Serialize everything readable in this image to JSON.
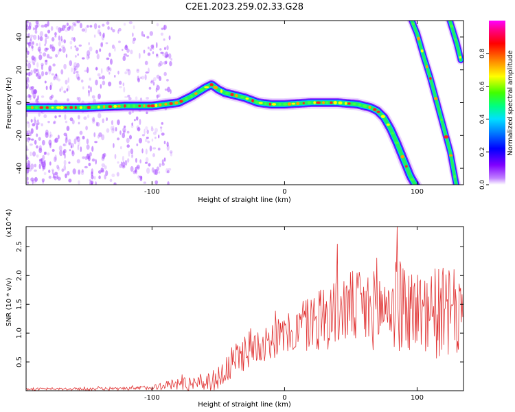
{
  "title": "C2E1.2023.259.02.33.G28",
  "chart_data": [
    {
      "type": "heatmap",
      "title": "C2E1.2023.259.02.33.G28",
      "xlabel": "Height of straight line (km)",
      "ylabel": "Frequency (Hz)",
      "xlim": [
        -195,
        135
      ],
      "ylim": [
        -50,
        50
      ],
      "xticks": [
        -100,
        0,
        100
      ],
      "xtick_labels": [
        "-100",
        "0",
        "100"
      ],
      "yticks": [
        -40,
        -20,
        0,
        20,
        40
      ],
      "ytick_labels": [
        "-40",
        "-20",
        "0",
        "20",
        "40"
      ],
      "colorbar": {
        "label": "Normalized spectral amplitude",
        "range": [
          0,
          1
        ],
        "ticks": [
          0.0,
          0.2,
          0.4,
          0.6,
          0.8
        ],
        "tick_labels": [
          "0.0",
          "0.2",
          "0.4",
          "0.6",
          "0.8"
        ],
        "colors": [
          "#ffffff",
          "#8000ff",
          "#0000ff",
          "#00c0ff",
          "#00ff80",
          "#40ff00",
          "#ffff00",
          "#ff8000",
          "#ff0000",
          "#ff00ff"
        ]
      },
      "series": [
        {
          "name": "main trace",
          "x": [
            -195,
            -150,
            -120,
            -100,
            -80,
            -70,
            -60,
            -55,
            -50,
            -45,
            -40,
            -30,
            -20,
            -10,
            0,
            20,
            40,
            55,
            65,
            70,
            75,
            80,
            85,
            90,
            95,
            100
          ],
          "y": [
            -3,
            -3,
            -2,
            -2,
            0,
            4,
            9,
            11,
            8,
            6,
            5,
            3,
            0,
            -1,
            -1,
            0,
            0,
            -1,
            -3,
            -5,
            -9,
            -16,
            -25,
            -35,
            -45,
            -52
          ]
        },
        {
          "name": "secondary trace 1",
          "x": [
            95,
            100,
            105,
            110,
            115,
            120,
            125,
            130
          ],
          "y": [
            52,
            42,
            28,
            15,
            0,
            -15,
            -30,
            -52
          ]
        },
        {
          "name": "secondary trace 2",
          "x": [
            124,
            127,
            130,
            133
          ],
          "y": [
            52,
            44,
            36,
            26
          ]
        }
      ]
    },
    {
      "type": "line",
      "xlabel": "Height of straight line (km)",
      "ylabel": "SNR (10 * v/v)",
      "y_multiplier": "(x10^4)",
      "xlim": [
        -195,
        135
      ],
      "ylim": [
        0,
        2.85
      ],
      "xticks": [
        -100,
        0,
        100
      ],
      "xtick_labels": [
        "-100",
        "0",
        "100"
      ],
      "yticks": [
        0.5,
        1.0,
        1.5,
        2.0,
        2.5
      ],
      "ytick_labels": [
        "0.5",
        "1.0",
        "1.5",
        "2.0",
        "2.5"
      ],
      "color": "#e03030",
      "envelope": {
        "x": [
          -195,
          -120,
          -100,
          -80,
          -60,
          -50,
          -40,
          -30,
          -20,
          -10,
          0,
          10,
          20,
          30,
          40,
          50,
          60,
          70,
          80,
          90,
          100,
          110,
          120,
          130,
          135
        ],
        "mean": [
          0.03,
          0.03,
          0.06,
          0.12,
          0.15,
          0.2,
          0.45,
          0.7,
          0.8,
          0.9,
          0.95,
          1.05,
          1.2,
          1.3,
          1.4,
          1.45,
          1.4,
          1.4,
          1.5,
          1.45,
          1.4,
          1.35,
          1.35,
          1.3,
          1.3
        ],
        "amp": [
          0.02,
          0.03,
          0.04,
          0.12,
          0.15,
          0.2,
          0.3,
          0.35,
          0.35,
          0.35,
          0.35,
          0.4,
          0.55,
          0.6,
          0.65,
          0.65,
          0.7,
          0.7,
          0.8,
          0.8,
          0.75,
          0.8,
          0.8,
          0.8,
          0.8
        ]
      },
      "approx_max": {
        "x": 85,
        "y": 2.85
      }
    }
  ]
}
